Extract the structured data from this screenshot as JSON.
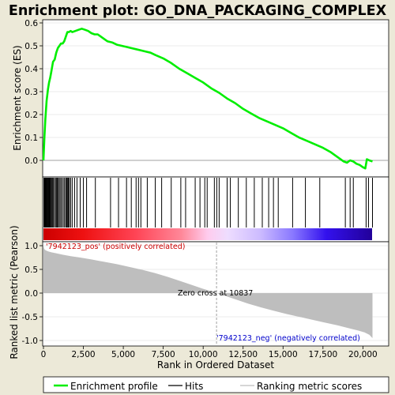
{
  "chart_data": [
    {
      "type": "line",
      "panel": "enrichment",
      "title": "Enrichment plot: GO_DNA_PACKAGING_COMPLEX",
      "ylabel": "Enrichment score (ES)",
      "xlim": [
        0,
        21000
      ],
      "ylim": [
        -0.06,
        0.61
      ],
      "yticks": [
        0.0,
        0.1,
        0.2,
        0.3,
        0.4,
        0.5,
        0.6
      ],
      "ytick_labels": [
        "0.0",
        "0.1",
        "0.2",
        "0.3",
        "0.4",
        "0.5",
        "0.6"
      ],
      "grid": true,
      "series": [
        {
          "name": "Enrichment profile",
          "color": "#00EE00",
          "x": [
            0,
            60,
            120,
            200,
            280,
            350,
            420,
            500,
            600,
            700,
            800,
            900,
            1000,
            1100,
            1200,
            1300,
            1400,
            1500,
            1600,
            1700,
            1800,
            2000,
            2200,
            2400,
            2600,
            2800,
            3000,
            3200,
            3400,
            3600,
            3800,
            4000,
            4300,
            4600,
            4900,
            5200,
            5500,
            5800,
            6100,
            6400,
            6700,
            7000,
            7500,
            8000,
            8500,
            9000,
            9500,
            10000,
            10500,
            11000,
            11500,
            12000,
            12500,
            13000,
            13500,
            14000,
            14500,
            15000,
            15500,
            16000,
            16500,
            17000,
            17500,
            18000,
            18500,
            18800,
            19000,
            19200,
            19400,
            19600,
            19800,
            20000,
            20150,
            20250,
            20400,
            20600
          ],
          "y": [
            0.0,
            0.1,
            0.18,
            0.26,
            0.31,
            0.34,
            0.36,
            0.39,
            0.43,
            0.44,
            0.47,
            0.49,
            0.5,
            0.51,
            0.51,
            0.52,
            0.54,
            0.56,
            0.56,
            0.565,
            0.56,
            0.565,
            0.57,
            0.575,
            0.57,
            0.565,
            0.555,
            0.55,
            0.55,
            0.54,
            0.53,
            0.52,
            0.515,
            0.505,
            0.5,
            0.495,
            0.49,
            0.485,
            0.48,
            0.475,
            0.47,
            0.46,
            0.445,
            0.425,
            0.4,
            0.38,
            0.36,
            0.34,
            0.315,
            0.295,
            0.27,
            0.25,
            0.225,
            0.205,
            0.185,
            0.17,
            0.155,
            0.14,
            0.12,
            0.1,
            0.085,
            0.07,
            0.055,
            0.035,
            0.01,
            -0.005,
            -0.01,
            0.0,
            -0.005,
            -0.015,
            -0.02,
            -0.03,
            -0.035,
            0.005,
            0.0,
            -0.005
          ]
        }
      ]
    },
    {
      "type": "hits",
      "panel": "hits",
      "xlim": [
        0,
        21000
      ],
      "legend_label": "Hits",
      "hit_positions": [
        30,
        60,
        90,
        120,
        150,
        190,
        230,
        270,
        310,
        350,
        390,
        430,
        480,
        530,
        580,
        630,
        700,
        780,
        830,
        880,
        930,
        1000,
        1080,
        1150,
        1240,
        1320,
        1400,
        1450,
        1500,
        1560,
        1620,
        1700,
        1800,
        1950,
        2100,
        2300,
        2500,
        2700,
        3250,
        4200,
        4700,
        5200,
        5500,
        5800,
        5950,
        6100,
        6500,
        7000,
        7400,
        8000,
        8600,
        8900,
        9500,
        9800,
        10100,
        10250,
        10700,
        10850,
        11000,
        11500,
        11700,
        12200,
        12700,
        13200,
        13700,
        14100,
        14400,
        14700,
        15600,
        16400,
        17300,
        18900,
        19200,
        19400,
        20200,
        20350,
        20600
      ],
      "heatmap_stops": [
        {
          "pos": 0.0,
          "color": "#CC0000"
        },
        {
          "pos": 0.12,
          "color": "#EE1111"
        },
        {
          "pos": 0.28,
          "color": "#FF4455"
        },
        {
          "pos": 0.42,
          "color": "#FF8899"
        },
        {
          "pos": 0.5,
          "color": "#FFCCEE"
        },
        {
          "pos": 0.56,
          "color": "#EEDDFF"
        },
        {
          "pos": 0.66,
          "color": "#CCBBFF"
        },
        {
          "pos": 0.76,
          "color": "#8877FF"
        },
        {
          "pos": 0.86,
          "color": "#3311EE"
        },
        {
          "pos": 1.0,
          "color": "#220099"
        }
      ]
    },
    {
      "type": "area",
      "panel": "ranking",
      "xlabel": "Rank in Ordered Dataset",
      "ylabel": "Ranked list metric (Pearson)",
      "xlim": [
        0,
        21000
      ],
      "ylim": [
        -1.05,
        1.1
      ],
      "xticks": [
        0,
        2500,
        5000,
        7500,
        10000,
        12500,
        15000,
        17500,
        20000
      ],
      "xtick_labels": [
        "0",
        "2,500",
        "5,000",
        "7,500",
        "10,000",
        "12,500",
        "15,000",
        "17,500",
        "20,000"
      ],
      "yticks": [
        1.0,
        0.5,
        0.0,
        -0.5,
        -1.0
      ],
      "ytick_labels": [
        "1.0",
        "0.5",
        "0.0",
        "-0.5",
        "-1.0"
      ],
      "fill_color": "#BEBEBE",
      "legend_label": "Ranking metric scores",
      "x": [
        0,
        50,
        150,
        300,
        500,
        800,
        1200,
        1700,
        2300,
        3000,
        3800,
        4600,
        5400,
        6200,
        7000,
        7800,
        8600,
        9300,
        9900,
        10400,
        10837,
        11300,
        12000,
        12800,
        13600,
        14400,
        15200,
        16000,
        16800,
        17600,
        18400,
        19100,
        19700,
        20100,
        20400,
        20600
      ],
      "y": [
        1.0,
        0.93,
        0.9,
        0.88,
        0.86,
        0.84,
        0.81,
        0.78,
        0.75,
        0.71,
        0.66,
        0.61,
        0.55,
        0.49,
        0.42,
        0.34,
        0.25,
        0.17,
        0.1,
        0.05,
        0.0,
        -0.05,
        -0.13,
        -0.22,
        -0.3,
        -0.37,
        -0.44,
        -0.5,
        -0.56,
        -0.62,
        -0.68,
        -0.74,
        -0.79,
        -0.83,
        -0.88,
        -0.95
      ],
      "annotations": {
        "pos_label": "'7942123_pos' (positively correlated)",
        "neg_label": "'7942123_neg' (negatively correlated)",
        "zero_cross_label": "Zero cross at 10837",
        "zero_cross_x": 10837
      }
    }
  ],
  "colors": {
    "background": "#ECE9D8",
    "plot_bg": "#FFFFFF",
    "es_line": "#00EE00",
    "zero_line": "#A0A0A0",
    "pos_label": "#CC0000",
    "neg_label": "#0000CC",
    "grid": "#D8D8D8"
  }
}
